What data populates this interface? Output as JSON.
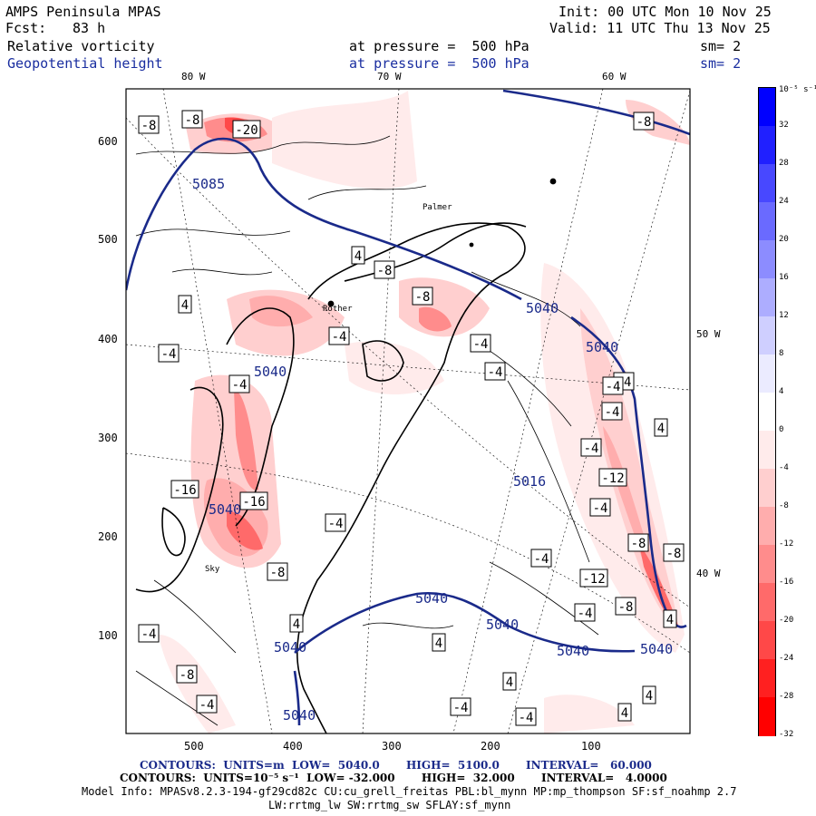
{
  "header": {
    "title": "AMPS Peninsula MPAS",
    "init": "Init: 00 UTC Mon 10 Nov 25",
    "fcst_label": "Fcst:",
    "fcst_value": "83 h",
    "valid": "Valid: 11 UTC Thu 13 Nov 25",
    "field1_name": "Relative vorticity",
    "field1_pressure": "at pressure =  500 hPa",
    "field1_sm": "sm= 2",
    "field2_name": "Geopotential height",
    "field2_pressure": "at pressure =  500 hPa",
    "field2_sm": "sm= 2"
  },
  "map": {
    "lon_labels_top": [
      "80 W",
      "70 W",
      "60 W"
    ],
    "lon_labels_right": [
      "50 W",
      "40 W"
    ],
    "y_ticks": [
      "600",
      "500",
      "400",
      "300",
      "200",
      "100"
    ],
    "x_ticks": [
      "500",
      "400",
      "300",
      "200",
      "100"
    ],
    "place_labels": [
      "Palmer",
      "Rother",
      "Sky"
    ],
    "height_contour_labels": [
      "5085",
      "5040",
      "5040",
      "5040",
      "5016",
      "5040",
      "5040",
      "5040",
      "5040",
      "5040",
      "5040",
      "5040"
    ],
    "vorticity_box_labels": [
      "-8",
      "-8",
      "-20",
      "-8",
      "4",
      "-8",
      "-8",
      "4",
      "-4",
      "-4",
      "-4",
      "-4",
      "-4",
      "-4",
      "-4",
      "-4",
      "-4",
      "-12",
      "-16",
      "-16",
      "-4",
      "-4",
      "-4",
      "-8",
      "-8",
      "-8",
      "-12",
      "-8",
      "-4",
      "4",
      "4",
      "4",
      "4",
      "4",
      "-4",
      "4",
      "4",
      "-8",
      "-4",
      "-4",
      "-4"
    ]
  },
  "colorbar": {
    "unit": "10⁻⁵ s⁻¹",
    "labels": [
      "32",
      "28",
      "24",
      "20",
      "16",
      "12",
      "8",
      "4",
      "0",
      "-4",
      "-8",
      "-12",
      "-16",
      "-20",
      "-24",
      "-28",
      "-32"
    ],
    "colors": [
      "#0000ff",
      "#2020ff",
      "#4848ff",
      "#6a6aff",
      "#8c8cff",
      "#adadff",
      "#cfcfff",
      "#ebebff",
      "#ffffff",
      "#ffebeb",
      "#ffcfcf",
      "#ffadad",
      "#ff8c8c",
      "#ff6a6a",
      "#ff4848",
      "#ff2020",
      "#ff0000"
    ]
  },
  "footer": {
    "line1": "CONTOURS:  UNITS=m  LOW=  5040.0       HIGH=  5100.0       INTERVAL=   60.000",
    "line2": "CONTOURS:  UNITS=10⁻⁵ s⁻¹  LOW= -32.000       HIGH=  32.000       INTERVAL=   4.0000",
    "line3": "Model Info: MPASv8.2.3-194-gf29cd82c CU:cu_grell_freitas PBL:bl_mynn MP:mp_thompson SF:sf_noahmp 2.7",
    "line4": "LW:rrtmg_lw SW:rrtmg_sw SFLAY:sf_mynn"
  }
}
